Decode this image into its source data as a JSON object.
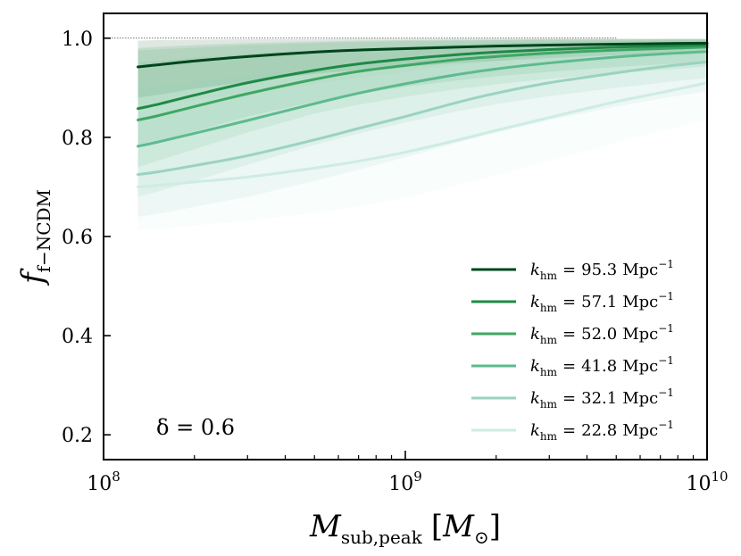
{
  "chart_data": {
    "type": "line",
    "x_scale": "log",
    "xlim": [
      100000000,
      10000000000
    ],
    "ylim": [
      0.15,
      1.05
    ],
    "xlabel": {
      "main": "M",
      "sub": "sub,peak",
      "bracket_open": "[",
      "unit": "M",
      "unit_sub": "⊙",
      "bracket_close": "]"
    },
    "ylabel": {
      "main": "f",
      "sub": "f−NCDM"
    },
    "x_ticks": [
      {
        "value": 100000000,
        "base": "10",
        "exp": "8"
      },
      {
        "value": 1000000000,
        "base": "10",
        "exp": "9"
      },
      {
        "value": 10000000000,
        "base": "10",
        "exp": "10"
      }
    ],
    "y_ticks": [
      0.2,
      0.4,
      0.6,
      0.8,
      1.0
    ],
    "y_tick_labels": [
      "0.2",
      "0.4",
      "0.6",
      "0.8",
      "1.0"
    ],
    "reference_line": {
      "y": 1.0,
      "x_range": [
        100000000,
        5000000000
      ]
    },
    "annotation": "δ = 0.6",
    "legend_position": "lower-right",
    "x": [
      130000000,
      150000000,
      200000000,
      300000000,
      500000000,
      700000000,
      1000000000,
      1500000000,
      2000000000,
      3000000000,
      5000000000,
      7000000000,
      10000000000
    ],
    "series": [
      {
        "name": "k_hm = 95.3 Mpc^-1",
        "label_var": "k",
        "label_sub": "hm",
        "label_eq": "=",
        "label_value": "95.3",
        "label_unit": "Mpc",
        "label_exp": "−1",
        "color": "#00441b",
        "values": [
          0.942,
          0.946,
          0.954,
          0.963,
          0.972,
          0.976,
          0.979,
          0.982,
          0.984,
          0.986,
          0.988,
          0.989,
          0.99
        ],
        "band_lower": [
          0.88,
          0.885,
          0.898,
          0.912,
          0.928,
          0.936,
          0.942,
          0.95,
          0.954,
          0.96,
          0.966,
          0.968,
          0.971
        ],
        "band_upper": [
          0.995,
          0.996,
          0.997,
          0.998,
          0.998,
          0.999,
          0.999,
          0.999,
          0.999,
          0.999,
          0.999,
          0.999,
          0.999
        ]
      },
      {
        "name": "k_hm = 57.1 Mpc^-1",
        "label_var": "k",
        "label_sub": "hm",
        "label_eq": "=",
        "label_value": "57.1",
        "label_unit": "Mpc",
        "label_exp": "−1",
        "color": "#1e8a45",
        "values": [
          0.858,
          0.866,
          0.885,
          0.91,
          0.935,
          0.948,
          0.958,
          0.967,
          0.972,
          0.977,
          0.982,
          0.984,
          0.986
        ],
        "band_lower": [
          0.78,
          0.79,
          0.812,
          0.842,
          0.872,
          0.888,
          0.902,
          0.915,
          0.923,
          0.932,
          0.942,
          0.947,
          0.952
        ],
        "band_upper": [
          0.98,
          0.982,
          0.986,
          0.99,
          0.993,
          0.995,
          0.996,
          0.997,
          0.997,
          0.998,
          0.998,
          0.998,
          0.998
        ]
      },
      {
        "name": "k_hm = 52.0 Mpc^-1",
        "label_var": "k",
        "label_sub": "hm",
        "label_eq": "=",
        "label_value": "52.0",
        "label_unit": "Mpc",
        "label_exp": "−1",
        "color": "#3fa763",
        "values": [
          0.835,
          0.843,
          0.862,
          0.888,
          0.917,
          0.933,
          0.945,
          0.957,
          0.963,
          0.97,
          0.976,
          0.979,
          0.982
        ],
        "band_lower": [
          0.74,
          0.752,
          0.776,
          0.81,
          0.848,
          0.866,
          0.882,
          0.898,
          0.907,
          0.918,
          0.93,
          0.936,
          0.943
        ],
        "band_upper": [
          0.975,
          0.977,
          0.981,
          0.986,
          0.99,
          0.992,
          0.994,
          0.995,
          0.996,
          0.997,
          0.997,
          0.998,
          0.998
        ]
      },
      {
        "name": "k_hm = 41.8 Mpc^-1",
        "label_var": "k",
        "label_sub": "hm",
        "label_eq": "=",
        "label_value": "41.8",
        "label_unit": "Mpc",
        "label_exp": "−1",
        "color": "#5dbb8e",
        "values": [
          0.782,
          0.79,
          0.808,
          0.834,
          0.868,
          0.889,
          0.908,
          0.927,
          0.938,
          0.95,
          0.962,
          0.968,
          0.973
        ],
        "band_lower": [
          0.68,
          0.69,
          0.712,
          0.745,
          0.785,
          0.808,
          0.83,
          0.853,
          0.867,
          0.883,
          0.9,
          0.91,
          0.92
        ],
        "band_upper": [
          0.95,
          0.953,
          0.96,
          0.968,
          0.976,
          0.98,
          0.984,
          0.988,
          0.99,
          0.992,
          0.994,
          0.995,
          0.996
        ]
      },
      {
        "name": "k_hm = 32.1 Mpc^-1",
        "label_var": "k",
        "label_sub": "hm",
        "label_eq": "=",
        "label_value": "32.1",
        "label_unit": "Mpc",
        "label_exp": "−1",
        "color": "#9ad3c0",
        "values": [
          0.725,
          0.73,
          0.743,
          0.763,
          0.795,
          0.818,
          0.842,
          0.871,
          0.889,
          0.91,
          0.93,
          0.942,
          0.952
        ],
        "band_lower": [
          0.64,
          0.645,
          0.66,
          0.68,
          0.712,
          0.735,
          0.76,
          0.79,
          0.81,
          0.835,
          0.862,
          0.878,
          0.893
        ],
        "band_upper": [
          0.9,
          0.904,
          0.912,
          0.925,
          0.94,
          0.95,
          0.96,
          0.97,
          0.976,
          0.982,
          0.987,
          0.99,
          0.992
        ]
      },
      {
        "name": "k_hm = 22.8 Mpc^-1",
        "label_var": "k",
        "label_sub": "hm",
        "label_eq": "=",
        "label_value": "22.8",
        "label_unit": "Mpc",
        "label_exp": "−1",
        "color": "#cdece4",
        "values": [
          0.7,
          0.703,
          0.71,
          0.72,
          0.738,
          0.752,
          0.77,
          0.795,
          0.814,
          0.84,
          0.872,
          0.89,
          0.91
        ],
        "band_lower": [
          0.612,
          0.615,
          0.622,
          0.632,
          0.648,
          0.66,
          0.678,
          0.705,
          0.724,
          0.752,
          0.79,
          0.812,
          0.835
        ],
        "band_upper": [
          0.86,
          0.865,
          0.875,
          0.89,
          0.908,
          0.92,
          0.932,
          0.946,
          0.955,
          0.965,
          0.975,
          0.98,
          0.985
        ]
      }
    ]
  }
}
